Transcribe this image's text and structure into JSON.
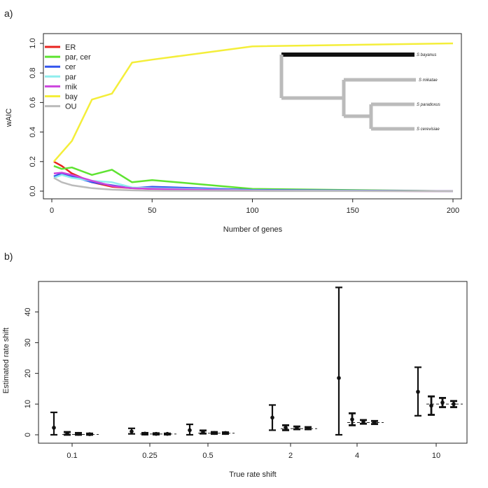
{
  "chart_data": [
    {
      "panel_label": "a)",
      "type": "line",
      "xlabel": "Number of genes",
      "ylabel": "wAIC",
      "xlim": [
        0,
        200
      ],
      "ylim": [
        0,
        1.0
      ],
      "xticks": [
        "0",
        "50",
        "100",
        "150",
        "200"
      ],
      "yticks": [
        "0.0",
        "0.2",
        "0.4",
        "0.6",
        "0.8",
        "1.0"
      ],
      "legend_position": "top-left",
      "series": [
        {
          "name": "ER",
          "color": "#e8231f",
          "x": [
            1,
            5,
            10,
            20,
            30,
            40,
            50,
            100,
            200
          ],
          "values": [
            0.2,
            0.17,
            0.12,
            0.06,
            0.03,
            0.02,
            0.015,
            0.005,
            0.0
          ]
        },
        {
          "name": "par, cer",
          "color": "#5ee331",
          "x": [
            1,
            5,
            10,
            20,
            30,
            40,
            50,
            100,
            200
          ],
          "values": [
            0.17,
            0.15,
            0.16,
            0.11,
            0.145,
            0.06,
            0.075,
            0.015,
            0.0
          ]
        },
        {
          "name": "cer",
          "color": "#3355ee",
          "x": [
            1,
            5,
            10,
            20,
            30,
            40,
            50,
            100,
            200
          ],
          "values": [
            0.1,
            0.12,
            0.1,
            0.06,
            0.04,
            0.02,
            0.03,
            0.008,
            0.0
          ]
        },
        {
          "name": "par",
          "color": "#8eeeee",
          "x": [
            1,
            5,
            10,
            20,
            30,
            40,
            50,
            100,
            200
          ],
          "values": [
            0.09,
            0.11,
            0.09,
            0.07,
            0.06,
            0.025,
            0.02,
            0.005,
            0.0
          ]
        },
        {
          "name": "mik",
          "color": "#cc44dd",
          "x": [
            1,
            5,
            10,
            20,
            30,
            40,
            50,
            100,
            200
          ],
          "values": [
            0.12,
            0.125,
            0.11,
            0.07,
            0.035,
            0.02,
            0.015,
            0.003,
            0.0
          ]
        },
        {
          "name": "bay",
          "color": "#f4ee3a",
          "x": [
            1,
            10,
            20,
            30,
            40,
            50,
            100,
            200
          ],
          "values": [
            0.2,
            0.34,
            0.62,
            0.66,
            0.87,
            0.89,
            0.98,
            1.0
          ]
        },
        {
          "name": "OU",
          "color": "#bbbbbb",
          "x": [
            1,
            5,
            10,
            20,
            30,
            40,
            50,
            100,
            200
          ],
          "values": [
            0.09,
            0.06,
            0.04,
            0.02,
            0.01,
            0.005,
            0.003,
            0.001,
            0.0
          ]
        }
      ],
      "tree": {
        "leaves": [
          "S bayanus",
          "S mikatae",
          "S paradoxus",
          "S cerevisiae"
        ]
      }
    },
    {
      "panel_label": "b)",
      "type": "errorbar",
      "xlabel": "True rate shift",
      "ylabel": "Estimated rate shift",
      "ylim": [
        0,
        48
      ],
      "yticks": [
        "0",
        "10",
        "20",
        "30",
        "40"
      ],
      "categories": [
        "0.1",
        "0.25",
        "0.5",
        "2",
        "4",
        "10"
      ],
      "true_values": [
        0.1,
        0.25,
        0.5,
        2,
        4,
        10
      ],
      "groups": [
        {
          "estimates": [
            {
              "mid": 2.3,
              "lo": 0.0,
              "hi": 7.3
            },
            {
              "mid": 0.4,
              "lo": 0.0,
              "hi": 0.9
            },
            {
              "mid": 0.3,
              "lo": 0.0,
              "hi": 0.6
            },
            {
              "mid": 0.2,
              "lo": 0.0,
              "hi": 0.4
            }
          ]
        },
        {
          "estimates": [
            {
              "mid": 1.1,
              "lo": 0.3,
              "hi": 2.1
            },
            {
              "mid": 0.4,
              "lo": 0.1,
              "hi": 0.6
            },
            {
              "mid": 0.3,
              "lo": 0.1,
              "hi": 0.5
            },
            {
              "mid": 0.3,
              "lo": 0.1,
              "hi": 0.4
            }
          ]
        },
        {
          "estimates": [
            {
              "mid": 1.5,
              "lo": 0.0,
              "hi": 3.4
            },
            {
              "mid": 0.9,
              "lo": 0.4,
              "hi": 1.4
            },
            {
              "mid": 0.6,
              "lo": 0.3,
              "hi": 0.9
            },
            {
              "mid": 0.6,
              "lo": 0.3,
              "hi": 0.8
            }
          ]
        },
        {
          "estimates": [
            {
              "mid": 5.6,
              "lo": 1.5,
              "hi": 9.7
            },
            {
              "mid": 2.3,
              "lo": 1.5,
              "hi": 3.1
            },
            {
              "mid": 2.3,
              "lo": 1.8,
              "hi": 2.7
            },
            {
              "mid": 2.1,
              "lo": 1.8,
              "hi": 2.5
            }
          ]
        },
        {
          "estimates": [
            {
              "mid": 18.5,
              "lo": 0.0,
              "hi": 48.0
            },
            {
              "mid": 5.0,
              "lo": 3.1,
              "hi": 7.0
            },
            {
              "mid": 4.2,
              "lo": 3.6,
              "hi": 4.8
            },
            {
              "mid": 4.0,
              "lo": 3.5,
              "hi": 4.5
            }
          ]
        },
        {
          "estimates": [
            {
              "mid": 14.0,
              "lo": 6.2,
              "hi": 22.0
            },
            {
              "mid": 9.5,
              "lo": 6.5,
              "hi": 12.5
            },
            {
              "mid": 10.5,
              "lo": 9.0,
              "hi": 12.0
            },
            {
              "mid": 10.0,
              "lo": 9.0,
              "hi": 11.0
            }
          ]
        }
      ]
    }
  ]
}
